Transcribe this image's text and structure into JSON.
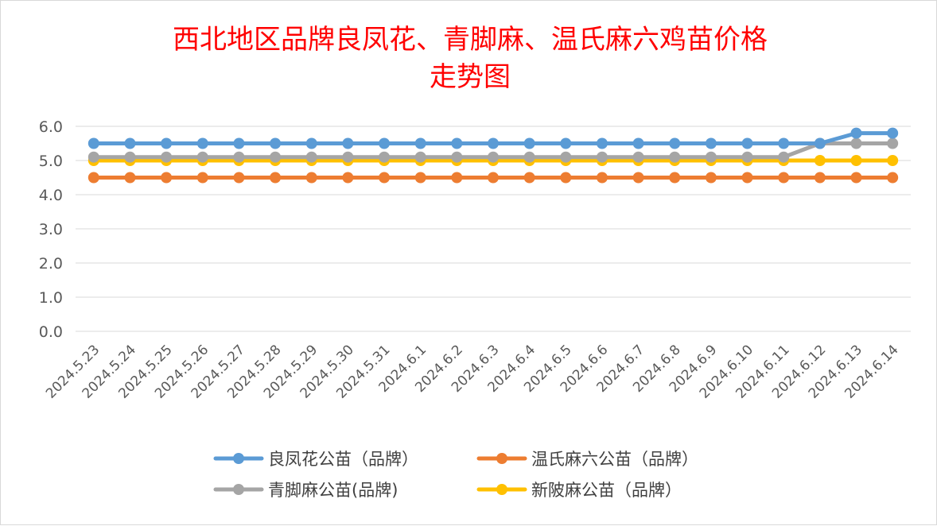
{
  "chart_data": {
    "type": "line",
    "title_lines": [
      "西北地区品牌良凤花、青脚麻、温氏麻六鸡苗价格",
      "走势图"
    ],
    "xlabel": "",
    "ylabel": "",
    "ylim": [
      0,
      6
    ],
    "yticks": [
      "0.0",
      "1.0",
      "2.0",
      "3.0",
      "4.0",
      "5.0",
      "6.0"
    ],
    "grid": true,
    "legend_position": "bottom",
    "categories": [
      "2024.5.23",
      "2024.5.24",
      "2024.5.25",
      "2024.5.26",
      "2024.5.27",
      "2024.5.28",
      "2024.5.29",
      "2024.5.30",
      "2024.5.31",
      "2024.6.1",
      "2024.6.2",
      "2024.6.3",
      "2024.6.4",
      "2024.6.5",
      "2024.6.6",
      "2024.6.7",
      "2024.6.8",
      "2024.6.9",
      "2024.6.10",
      "2024.6.11",
      "2024.6.12",
      "2024.6.13",
      "2024.6.14"
    ],
    "series": [
      {
        "name": "良凤花公苗（品牌）",
        "color": "#5b9bd5",
        "values": [
          5.5,
          5.5,
          5.5,
          5.5,
          5.5,
          5.5,
          5.5,
          5.5,
          5.5,
          5.5,
          5.5,
          5.5,
          5.5,
          5.5,
          5.5,
          5.5,
          5.5,
          5.5,
          5.5,
          5.5,
          5.5,
          5.8,
          5.8
        ]
      },
      {
        "name": "温氏麻六公苗（品牌）",
        "color": "#ed7d31",
        "values": [
          4.5,
          4.5,
          4.5,
          4.5,
          4.5,
          4.5,
          4.5,
          4.5,
          4.5,
          4.5,
          4.5,
          4.5,
          4.5,
          4.5,
          4.5,
          4.5,
          4.5,
          4.5,
          4.5,
          4.5,
          4.5,
          4.5,
          4.5
        ]
      },
      {
        "name": "青脚麻公苗(品牌)",
        "color": "#a5a5a5",
        "values": [
          5.1,
          5.1,
          5.1,
          5.1,
          5.1,
          5.1,
          5.1,
          5.1,
          5.1,
          5.1,
          5.1,
          5.1,
          5.1,
          5.1,
          5.1,
          5.1,
          5.1,
          5.1,
          5.1,
          5.1,
          5.5,
          5.5,
          5.5
        ]
      },
      {
        "name": "新陂麻公苗（品牌）",
        "color": "#ffc000",
        "values": [
          5.0,
          5.0,
          5.0,
          5.0,
          5.0,
          5.0,
          5.0,
          5.0,
          5.0,
          5.0,
          5.0,
          5.0,
          5.0,
          5.0,
          5.0,
          5.0,
          5.0,
          5.0,
          5.0,
          5.0,
          5.0,
          5.0,
          5.0
        ]
      }
    ],
    "legend_order": [
      0,
      1,
      2,
      3
    ]
  }
}
